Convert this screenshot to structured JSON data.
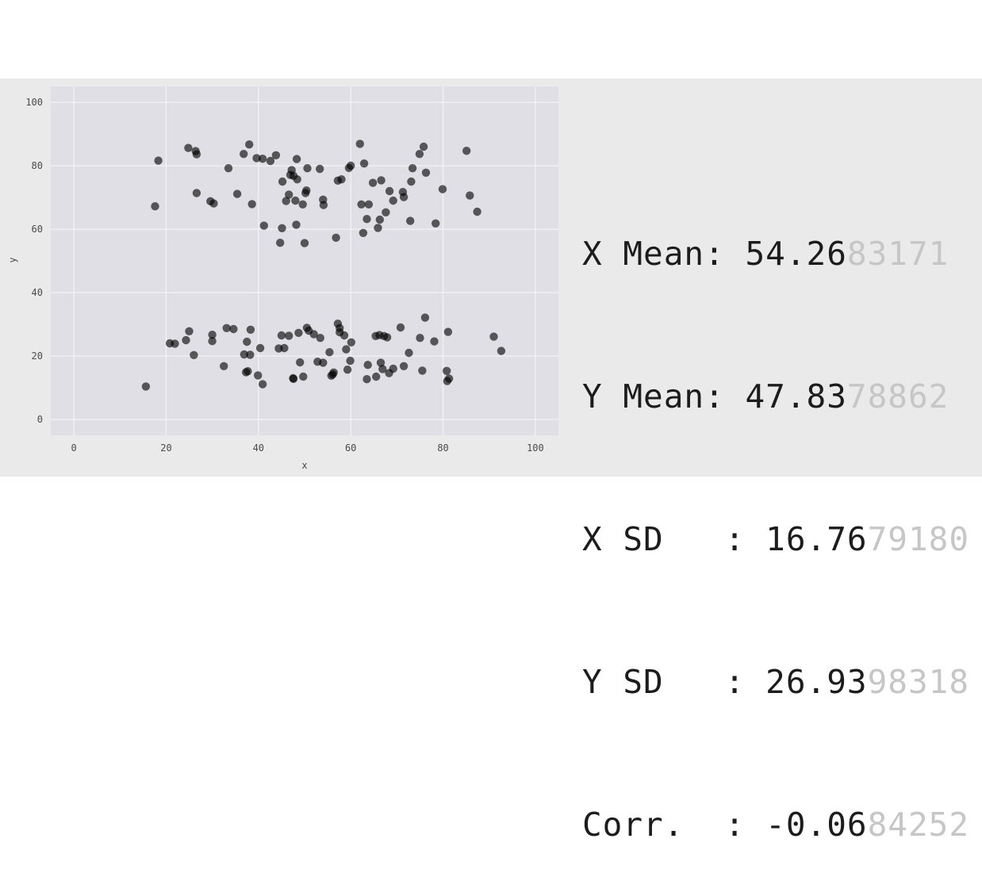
{
  "chart_data": {
    "type": "scatter",
    "xlabel": "x",
    "ylabel": "y",
    "xlim": [
      -5,
      105
    ],
    "ylim": [
      -5,
      105
    ],
    "x_ticks": [
      0,
      20,
      40,
      60,
      80,
      100
    ],
    "y_ticks": [
      0,
      20,
      40,
      60,
      80,
      100
    ],
    "grid": true,
    "point_color": "#000000",
    "background_color": "#dfdfe5",
    "points": [
      [
        18.3,
        81.6
      ],
      [
        24.8,
        85.6
      ],
      [
        26.6,
        83.6
      ],
      [
        26.4,
        84.6
      ],
      [
        17.6,
        67.2
      ],
      [
        26.6,
        71.4
      ],
      [
        29.6,
        68.8
      ],
      [
        30.3,
        68.1
      ],
      [
        33.5,
        79.2
      ],
      [
        35.4,
        71.1
      ],
      [
        36.8,
        83.7
      ],
      [
        38.0,
        86.7
      ],
      [
        38.6,
        67.9
      ],
      [
        39.6,
        82.4
      ],
      [
        40.9,
        82.2
      ],
      [
        41.2,
        61.1
      ],
      [
        42.6,
        81.5
      ],
      [
        43.8,
        83.3
      ],
      [
        44.7,
        55.7
      ],
      [
        45.1,
        60.3
      ],
      [
        45.2,
        75.0
      ],
      [
        46.0,
        68.9
      ],
      [
        46.6,
        70.9
      ],
      [
        46.9,
        77.1
      ],
      [
        47.2,
        78.6
      ],
      [
        47.6,
        76.8
      ],
      [
        48.0,
        69.0
      ],
      [
        48.2,
        61.4
      ],
      [
        48.3,
        82.1
      ],
      [
        48.4,
        75.7
      ],
      [
        49.6,
        67.8
      ],
      [
        50.0,
        55.6
      ],
      [
        50.2,
        71.4
      ],
      [
        50.4,
        72.2
      ],
      [
        50.6,
        79.2
      ],
      [
        53.3,
        79.0
      ],
      [
        54.0,
        69.3
      ],
      [
        54.1,
        67.6
      ],
      [
        56.8,
        57.3
      ],
      [
        57.2,
        75.3
      ],
      [
        58.0,
        75.7
      ],
      [
        59.6,
        79.3
      ],
      [
        60.0,
        80.0
      ],
      [
        62.0,
        86.9
      ],
      [
        62.3,
        67.8
      ],
      [
        62.7,
        58.8
      ],
      [
        62.9,
        80.7
      ],
      [
        63.5,
        63.2
      ],
      [
        63.9,
        67.8
      ],
      [
        64.8,
        74.6
      ],
      [
        65.9,
        60.4
      ],
      [
        66.3,
        63.0
      ],
      [
        66.6,
        75.4
      ],
      [
        67.6,
        65.3
      ],
      [
        68.4,
        72.0
      ],
      [
        69.2,
        69.0
      ],
      [
        71.3,
        71.7
      ],
      [
        71.5,
        70.1
      ],
      [
        72.9,
        62.6
      ],
      [
        73.1,
        75.0
      ],
      [
        73.4,
        79.2
      ],
      [
        74.9,
        83.7
      ],
      [
        75.8,
        86.0
      ],
      [
        76.3,
        77.8
      ],
      [
        78.4,
        61.8
      ],
      [
        79.9,
        72.6
      ],
      [
        85.1,
        84.7
      ],
      [
        85.8,
        70.6
      ],
      [
        87.4,
        65.5
      ],
      [
        15.6,
        10.4
      ],
      [
        20.8,
        24.0
      ],
      [
        24.3,
        25.0
      ],
      [
        25.0,
        27.8
      ],
      [
        26.0,
        20.3
      ],
      [
        30.0,
        26.7
      ],
      [
        30.0,
        24.7
      ],
      [
        32.5,
        16.8
      ],
      [
        33.1,
        28.8
      ],
      [
        36.9,
        20.5
      ],
      [
        37.5,
        24.5
      ],
      [
        37.7,
        15.2
      ],
      [
        38.2,
        20.4
      ],
      [
        38.3,
        28.3
      ],
      [
        39.9,
        13.9
      ],
      [
        40.4,
        22.5
      ],
      [
        40.9,
        11.1
      ],
      [
        44.4,
        22.4
      ],
      [
        45.0,
        26.5
      ],
      [
        45.6,
        22.5
      ],
      [
        46.6,
        26.4
      ],
      [
        47.6,
        12.8
      ],
      [
        47.5,
        13.0
      ],
      [
        48.7,
        27.3
      ],
      [
        49.7,
        13.5
      ],
      [
        50.5,
        28.9
      ],
      [
        52.0,
        26.9
      ],
      [
        52.8,
        18.2
      ],
      [
        53.4,
        25.7
      ],
      [
        54.0,
        17.9
      ],
      [
        55.4,
        21.2
      ],
      [
        55.8,
        13.8
      ],
      [
        56.3,
        14.8
      ],
      [
        57.2,
        30.2
      ],
      [
        57.6,
        28.8
      ],
      [
        57.6,
        27.5
      ],
      [
        58.6,
        26.5
      ],
      [
        59.0,
        22.1
      ],
      [
        59.3,
        15.7
      ],
      [
        59.9,
        18.5
      ],
      [
        63.5,
        12.7
      ],
      [
        63.7,
        17.2
      ],
      [
        65.4,
        26.3
      ],
      [
        65.5,
        13.5
      ],
      [
        66.2,
        26.6
      ],
      [
        66.5,
        17.9
      ],
      [
        67.2,
        26.3
      ],
      [
        68.3,
        14.6
      ],
      [
        70.8,
        29.0
      ],
      [
        71.5,
        16.8
      ],
      [
        72.6,
        21.0
      ],
      [
        75.0,
        25.7
      ],
      [
        75.5,
        15.4
      ],
      [
        76.1,
        32.1
      ],
      [
        78.1,
        24.6
      ],
      [
        80.8,
        15.3
      ],
      [
        81.1,
        27.6
      ],
      [
        81.3,
        12.9
      ],
      [
        80.9,
        12.1
      ],
      [
        91.0,
        26.1
      ],
      [
        92.6,
        21.6
      ],
      [
        21.9,
        23.9
      ],
      [
        34.6,
        28.5
      ],
      [
        37.3,
        14.9
      ],
      [
        49.0,
        18.0
      ],
      [
        50.9,
        28.0
      ],
      [
        56.1,
        14.2
      ],
      [
        60.1,
        24.3
      ],
      [
        66.9,
        15.9
      ],
      [
        67.9,
        25.9
      ],
      [
        69.2,
        16.0
      ]
    ]
  },
  "stats": [
    {
      "label": "X Mean: ",
      "strong": "54.26",
      "faded": "83171"
    },
    {
      "label": "Y Mean: ",
      "strong": "47.83",
      "faded": "78862"
    },
    {
      "label": "X SD   : ",
      "strong": "16.76",
      "faded": "79180"
    },
    {
      "label": "Y SD   : ",
      "strong": "26.93",
      "faded": "98318"
    },
    {
      "label": "Corr.  : ",
      "strong": "-0.06",
      "faded": "84252"
    }
  ]
}
